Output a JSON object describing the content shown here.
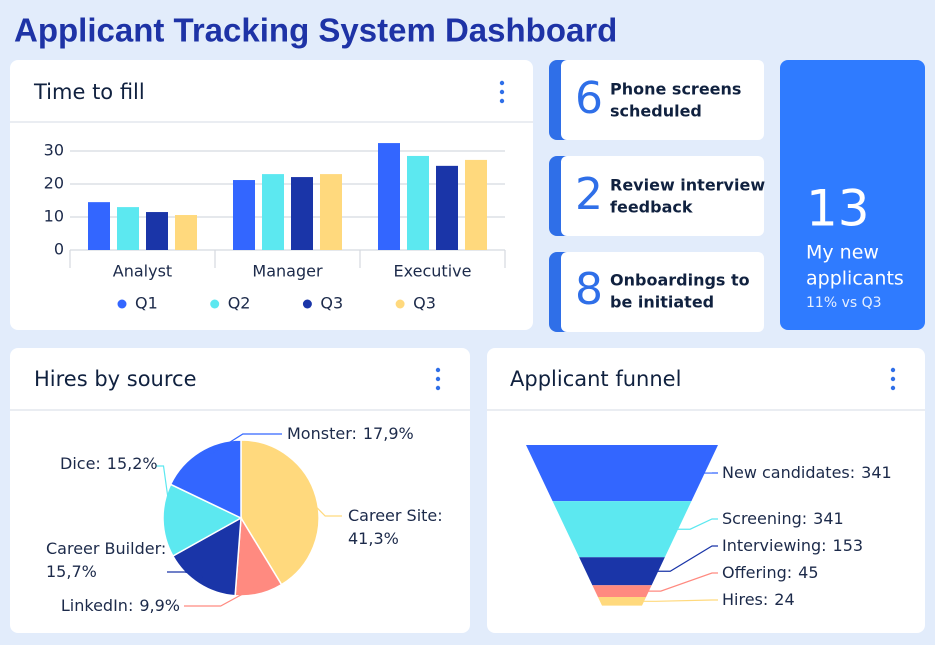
{
  "title": "Applicant Tracking System Dashboard",
  "kpis": [
    {
      "value": 6,
      "label": [
        "Phone screens",
        "scheduled"
      ]
    },
    {
      "value": 2,
      "label": [
        "Review interview",
        "feedback"
      ]
    },
    {
      "value": 8,
      "label": [
        "Onboardings to",
        "be initiated"
      ]
    }
  ],
  "highlight": {
    "value": 13,
    "label": [
      "My new",
      "applicants"
    ],
    "note": "11% vs Q3"
  },
  "chart_data": [
    {
      "type": "bar",
      "title": "Time to fill",
      "categories": [
        "Analyst",
        "Manager",
        "Executive"
      ],
      "series": [
        {
          "name": "Q1",
          "color": "#3366ff",
          "values": [
            14.5,
            21.2,
            32.4
          ]
        },
        {
          "name": "Q2",
          "color": "#5ce8f0",
          "values": [
            13,
            23,
            28.5
          ]
        },
        {
          "name": "Q3",
          "color": "#1a35a8",
          "values": [
            11.5,
            22.1,
            25.5
          ]
        },
        {
          "name": "Q3",
          "color": "#ffd97d",
          "values": [
            10.6,
            23,
            27.3
          ]
        }
      ],
      "ylim": [
        0,
        35
      ],
      "yticks": [
        0,
        10,
        20,
        30
      ],
      "grid": true
    },
    {
      "type": "pie",
      "title": "Hires by source",
      "categories": [
        "Career Site:",
        "LinkedIn:",
        "Career Builder:",
        "Dice:",
        "Monster:"
      ],
      "values": [
        41.3,
        9.9,
        15.7,
        15.2,
        17.9
      ],
      "value_labels": [
        "41,3%",
        "9,9%",
        "15,7%",
        "15,2%",
        "17,9%"
      ],
      "colors": [
        "#ffd97d",
        "#ff8a80",
        "#1a35a8",
        "#5ce8f0",
        "#3366ff"
      ]
    },
    {
      "type": "funnel",
      "title": "Applicant funnel",
      "categories": [
        "New candidates:",
        "Screening:",
        "Interviewing:",
        "Offering:",
        "Hires:"
      ],
      "values": [
        341,
        341,
        153,
        45,
        24
      ],
      "colors": [
        "#3366ff",
        "#5ce8f0",
        "#1a35a8",
        "#ff8a80",
        "#ffd97d"
      ]
    }
  ]
}
